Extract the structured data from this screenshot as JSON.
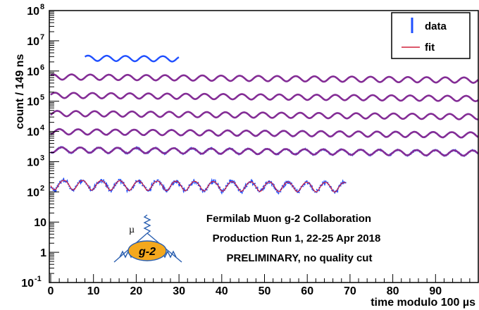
{
  "chart_data": {
    "type": "line",
    "title": "",
    "xlabel": "time modulo 100 µs",
    "ylabel": "count / 149 ns",
    "xlim": [
      0,
      100
    ],
    "ylim": [
      0.1,
      100000000
    ],
    "y_scale": "log",
    "x_ticks": [
      "0",
      "10",
      "20",
      "30",
      "40",
      "50",
      "60",
      "70",
      "80",
      "90"
    ],
    "y_ticks": [
      {
        "value": 0.1,
        "label": "10",
        "sup": "-1"
      },
      {
        "value": 1,
        "label": "1",
        "sup": ""
      },
      {
        "value": 10,
        "label": "10",
        "sup": ""
      },
      {
        "value": 100,
        "label": "10",
        "sup": "2"
      },
      {
        "value": 1000,
        "label": "10",
        "sup": "3"
      },
      {
        "value": 10000,
        "label": "10",
        "sup": "4"
      },
      {
        "value": 100000,
        "label": "10",
        "sup": "5"
      },
      {
        "value": 1000000,
        "label": "10",
        "sup": "6"
      },
      {
        "value": 10000000,
        "label": "10",
        "sup": "7"
      },
      {
        "value": 100000000,
        "label": "10",
        "sup": "8"
      }
    ],
    "legend": {
      "placement": "top-right",
      "entries": [
        {
          "label": "data",
          "color": "#1f4fff"
        },
        {
          "label": "fit",
          "color": "#d0213a"
        }
      ]
    },
    "series": [
      {
        "segment": 0,
        "start_us": 8,
        "end_us": 30,
        "level": 2700000,
        "amplitude": 0.2,
        "period_us": 4.37,
        "noise": 0
      },
      {
        "segment": 1,
        "start_us": 0,
        "end_us": 100,
        "level": 650000,
        "amplitude": 0.2,
        "period_us": 4.37,
        "noise": 0
      },
      {
        "segment": 2,
        "start_us": 0,
        "end_us": 100,
        "level": 160000,
        "amplitude": 0.2,
        "period_us": 4.37,
        "noise": 0
      },
      {
        "segment": 3,
        "start_us": 0,
        "end_us": 100,
        "level": 40000,
        "amplitude": 0.2,
        "period_us": 4.37,
        "noise": 0
      },
      {
        "segment": 4,
        "start_us": 0,
        "end_us": 100,
        "level": 10000,
        "amplitude": 0.2,
        "period_us": 4.37,
        "noise": 0.02
      },
      {
        "segment": 5,
        "start_us": 0,
        "end_us": 100,
        "level": 2500,
        "amplitude": 0.2,
        "period_us": 4.37,
        "noise": 0.04
      },
      {
        "segment": 6,
        "start_us": 0,
        "end_us": 69,
        "level": 180,
        "amplitude": 0.35,
        "period_us": 4.37,
        "noise": 0.12
      }
    ],
    "colors": {
      "data": "#1f4fff",
      "fit": "#d0213a",
      "overlap": "#8a2b8f",
      "logo_fill": "#f4a81d"
    }
  },
  "annotations": {
    "line1": "Fermilab Muon g-2 Collaboration",
    "line2": "Production Run 1, 22-25 Apr 2018",
    "line3": "PRELIMINARY, no quality cut"
  },
  "logo": {
    "label": "g-2",
    "mu_label": "µ"
  },
  "units": {
    "micro": "µs"
  }
}
